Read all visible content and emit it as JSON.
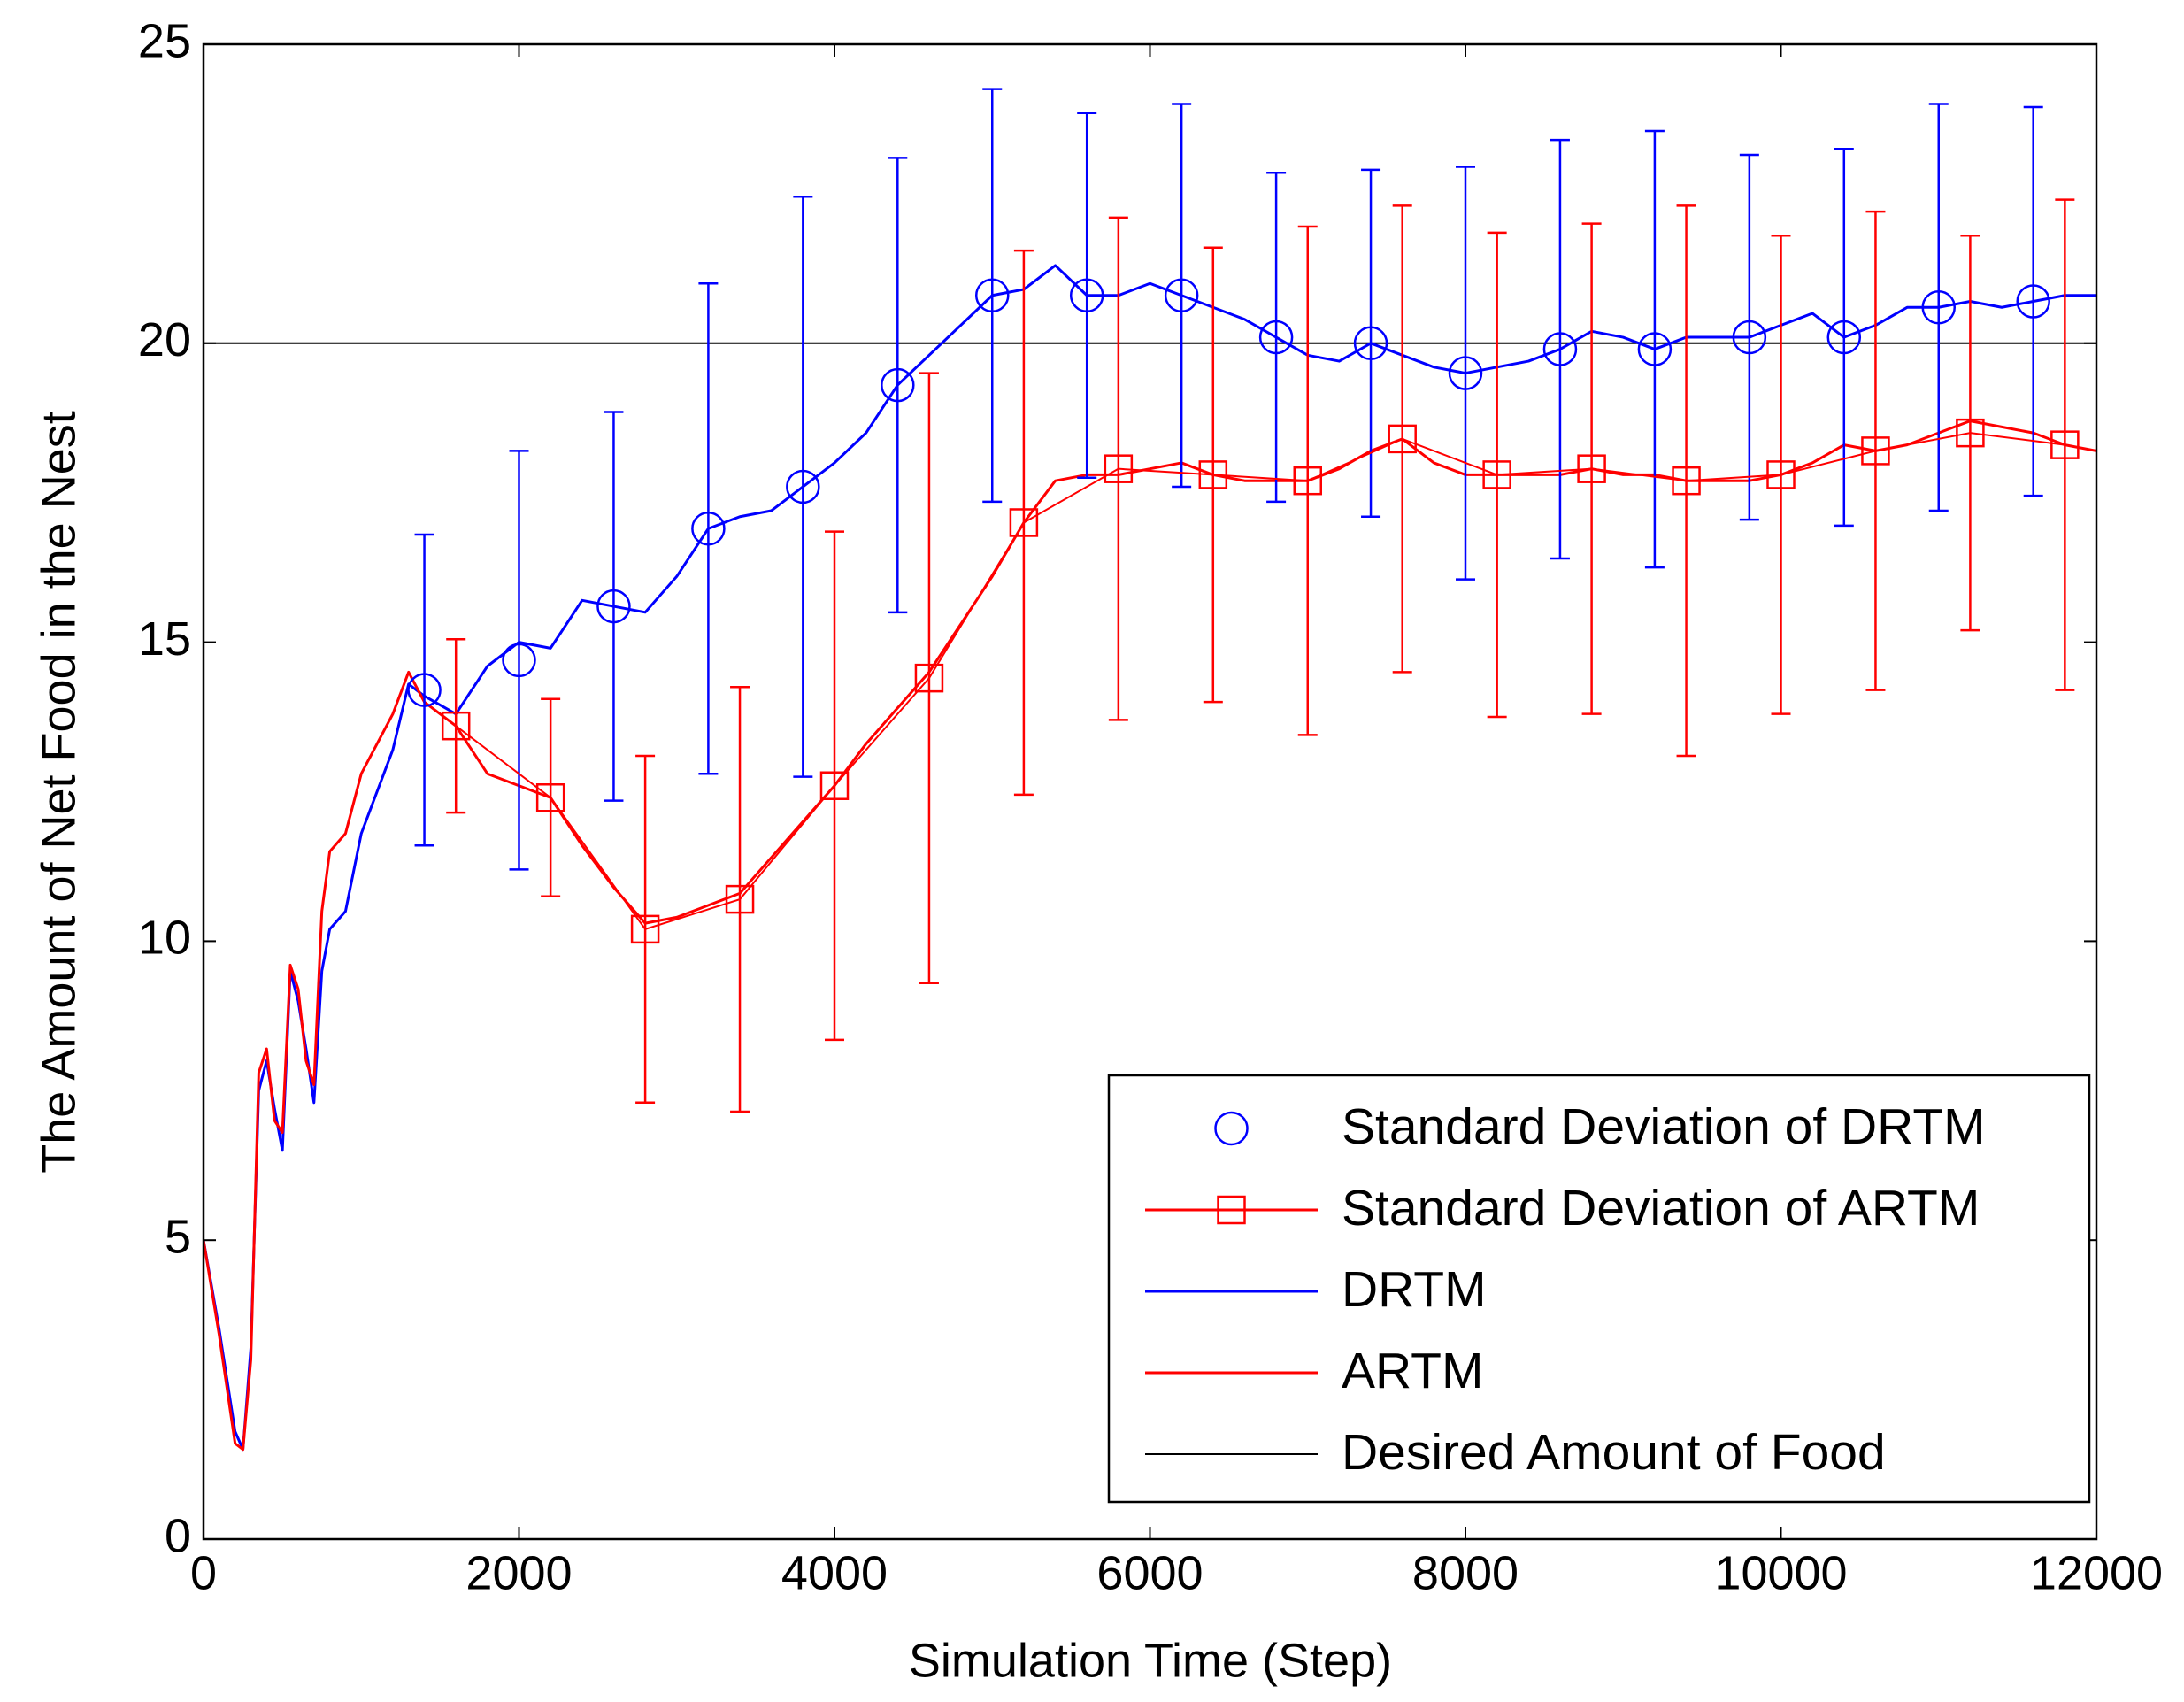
{
  "chart_data": {
    "type": "line",
    "xlabel": "Simulation Time (Step)",
    "ylabel": "The Amount of Net Food in the Nest",
    "xlim": [
      0,
      12000
    ],
    "ylim": [
      0,
      25
    ],
    "xticks": [
      0,
      2000,
      4000,
      6000,
      8000,
      10000,
      12000
    ],
    "yticks": [
      0,
      5,
      10,
      15,
      20,
      25
    ],
    "grid": false,
    "legend": "lower right",
    "series": [
      {
        "name": "Standard Deviation of DRTM",
        "kind": "errorbar",
        "marker": "circle",
        "connect": false,
        "color": "#0000ff",
        "x": [
          1400,
          2000,
          2600,
          3200,
          3800,
          4400,
          5000,
          5600,
          6200,
          6800,
          7400,
          8000,
          8600,
          9200,
          9800,
          10400,
          11000,
          11600
        ],
        "values": [
          14.2,
          14.7,
          15.6,
          16.9,
          17.6,
          19.3,
          20.8,
          20.8,
          20.8,
          20.1,
          20.0,
          19.5,
          19.9,
          19.9,
          20.1,
          20.1,
          20.6,
          20.7
        ],
        "errors": [
          2.6,
          3.5,
          3.25,
          4.1,
          4.85,
          3.8,
          3.45,
          3.05,
          3.2,
          2.75,
          2.9,
          3.45,
          3.5,
          3.65,
          3.05,
          3.15,
          3.4,
          3.25
        ]
      },
      {
        "name": "Standard Deviation of ARTM",
        "kind": "errorbar",
        "marker": "square",
        "connect": true,
        "color": "#ff0000",
        "x": [
          1600,
          2200,
          2800,
          3400,
          4000,
          4600,
          5200,
          5800,
          6400,
          7000,
          7600,
          8200,
          8800,
          9400,
          10000,
          10600,
          11200,
          11800
        ],
        "values": [
          13.6,
          12.4,
          10.2,
          10.7,
          12.6,
          14.4,
          17.0,
          17.9,
          17.8,
          17.7,
          18.4,
          17.8,
          17.9,
          17.7,
          17.8,
          18.2,
          18.5,
          18.3
        ],
        "errors": [
          1.45,
          1.65,
          2.9,
          3.55,
          4.25,
          5.1,
          4.55,
          4.2,
          3.8,
          4.25,
          3.9,
          4.05,
          4.1,
          4.6,
          4.0,
          4.0,
          3.3,
          4.1
        ]
      },
      {
        "name": "DRTM",
        "kind": "line",
        "color": "#0000ff",
        "x": [
          0,
          100,
          200,
          250,
          300,
          350,
          400,
          450,
          500,
          550,
          600,
          650,
          700,
          750,
          800,
          900,
          1000,
          1100,
          1200,
          1300,
          1400,
          1600,
          1800,
          2000,
          2200,
          2400,
          2600,
          2800,
          3000,
          3200,
          3400,
          3600,
          3800,
          4000,
          4200,
          4400,
          4600,
          4800,
          5000,
          5200,
          5400,
          5600,
          5800,
          6000,
          6200,
          6400,
          6600,
          6800,
          7000,
          7200,
          7400,
          7600,
          7800,
          8000,
          8200,
          8400,
          8600,
          8800,
          9000,
          9200,
          9400,
          9600,
          9800,
          10000,
          10200,
          10400,
          10600,
          10800,
          11000,
          11200,
          11400,
          11600,
          11800,
          12000
        ],
        "values": [
          5,
          3.5,
          1.8,
          1.5,
          3.2,
          7.5,
          8.0,
          7.2,
          6.5,
          9.5,
          9.0,
          8.2,
          7.3,
          9.5,
          10.2,
          10.5,
          11.8,
          12.5,
          13.2,
          14.3,
          14.1,
          13.8,
          14.6,
          15.0,
          14.9,
          15.7,
          15.6,
          15.5,
          16.1,
          16.9,
          17.1,
          17.2,
          17.6,
          18.0,
          18.5,
          19.3,
          19.8,
          20.3,
          20.8,
          20.9,
          21.3,
          20.8,
          20.8,
          21.0,
          20.8,
          20.6,
          20.4,
          20.1,
          19.8,
          19.7,
          20.0,
          19.8,
          19.6,
          19.5,
          19.6,
          19.7,
          19.9,
          20.2,
          20.1,
          19.9,
          20.1,
          20.1,
          20.1,
          20.3,
          20.5,
          20.1,
          20.3,
          20.6,
          20.6,
          20.7,
          20.6,
          20.7,
          20.8,
          20.8
        ]
      },
      {
        "name": "ARTM",
        "kind": "line",
        "color": "#ff0000",
        "x": [
          0,
          100,
          200,
          250,
          300,
          350,
          400,
          450,
          500,
          550,
          600,
          650,
          700,
          750,
          800,
          900,
          1000,
          1100,
          1200,
          1300,
          1400,
          1600,
          1800,
          2000,
          2200,
          2400,
          2600,
          2800,
          3000,
          3200,
          3400,
          3600,
          3800,
          4000,
          4200,
          4400,
          4600,
          4800,
          5000,
          5200,
          5400,
          5600,
          5800,
          6000,
          6200,
          6400,
          6600,
          6800,
          7000,
          7200,
          7400,
          7600,
          7800,
          8000,
          8200,
          8400,
          8600,
          8800,
          9000,
          9200,
          9400,
          9600,
          9800,
          10000,
          10200,
          10400,
          10600,
          10800,
          11000,
          11200,
          11400,
          11600,
          11800,
          12000
        ],
        "values": [
          5,
          3.4,
          1.6,
          1.5,
          3.0,
          7.8,
          8.2,
          7.0,
          6.8,
          9.6,
          9.2,
          8.0,
          7.6,
          10.5,
          11.5,
          11.8,
          12.8,
          13.3,
          13.8,
          14.5,
          14.0,
          13.6,
          12.8,
          12.6,
          12.4,
          11.6,
          10.9,
          10.3,
          10.4,
          10.6,
          10.8,
          11.4,
          12.0,
          12.6,
          13.3,
          13.9,
          14.5,
          15.3,
          16.1,
          17.0,
          17.7,
          17.8,
          17.8,
          17.9,
          18.0,
          17.8,
          17.7,
          17.7,
          17.7,
          17.9,
          18.2,
          18.4,
          18.0,
          17.8,
          17.8,
          17.8,
          17.8,
          17.9,
          17.8,
          17.8,
          17.7,
          17.7,
          17.7,
          17.8,
          18.0,
          18.3,
          18.2,
          18.3,
          18.5,
          18.7,
          18.6,
          18.5,
          18.3,
          18.2
        ]
      },
      {
        "name": "Desired Amount of Food",
        "kind": "hline",
        "color": "#000000",
        "y": 20
      }
    ]
  }
}
